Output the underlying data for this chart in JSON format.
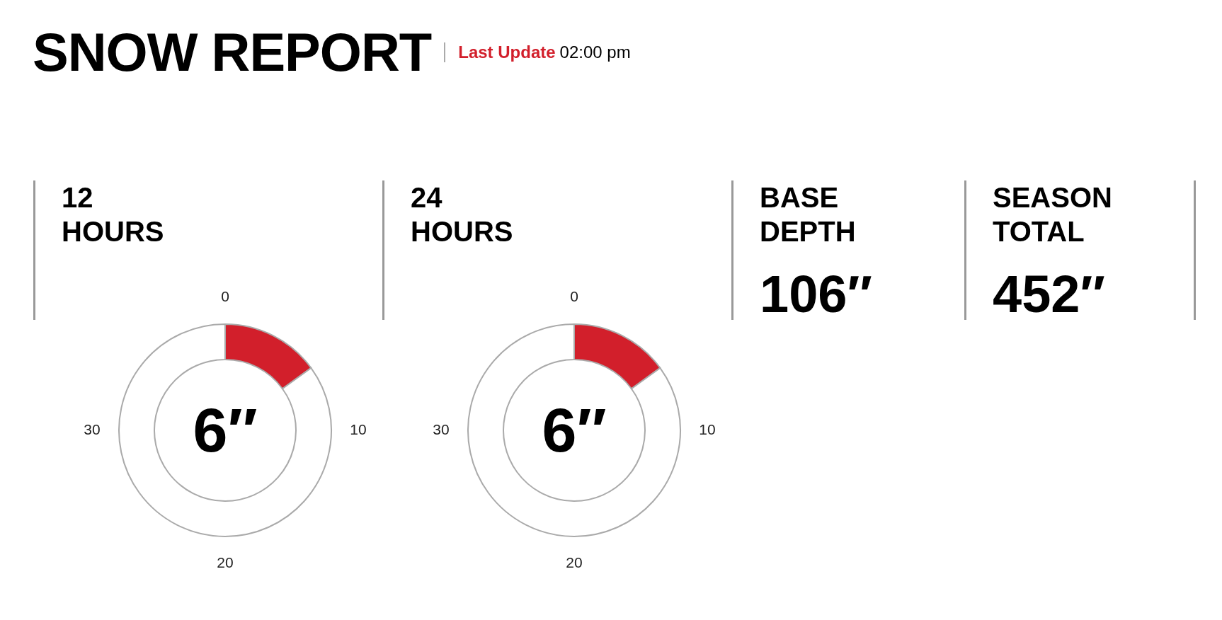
{
  "chart_data": [
    {
      "type": "other",
      "title": "SNOW REPORT",
      "annotations": [
        "Last Update",
        "02:00 pm"
      ]
    },
    {
      "type": "donut",
      "title": "12 HOURS",
      "categories": [
        null,
        null
      ],
      "values": [
        6,
        34
      ],
      "colors": [
        "#d21f2b",
        "#ffffff"
      ],
      "value_labels": [
        "6″",
        null
      ],
      "annotations": [
        "0",
        "10",
        "20",
        "30"
      ]
    },
    {
      "type": "donut",
      "title": "24 HOURS",
      "categories": [
        null,
        null
      ],
      "values": [
        6,
        34
      ],
      "colors": [
        "#d21f2b",
        "#ffffff"
      ],
      "value_labels": [
        "6″",
        null
      ],
      "annotations": [
        "0",
        "10",
        "20",
        "30"
      ]
    },
    {
      "type": "other",
      "title": "BASE DEPTH",
      "annotations": [
        "106″"
      ]
    },
    {
      "type": "other",
      "title": "SEASON TOTAL",
      "annotations": [
        "452″"
      ]
    }
  ]
}
